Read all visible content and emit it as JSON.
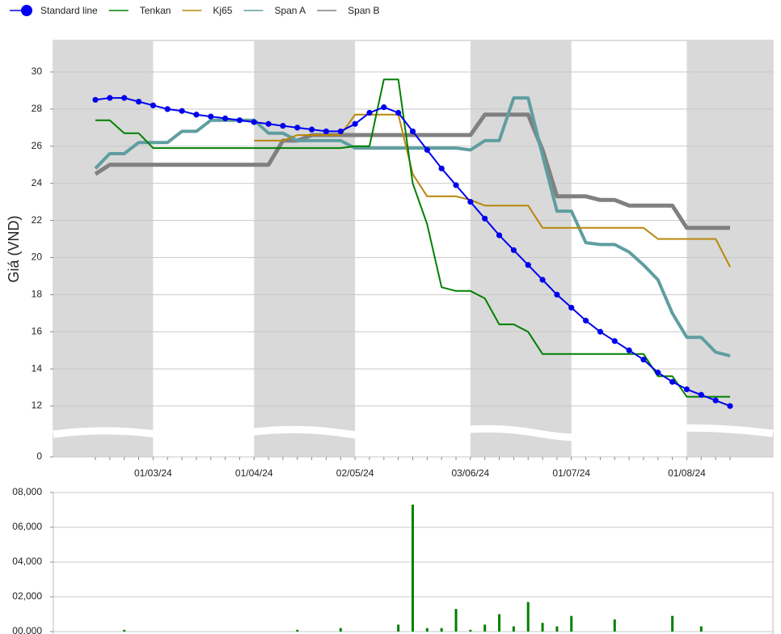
{
  "chart_data": [
    {
      "type": "line",
      "y_label": "Giá (VND)",
      "categories": [
        null,
        null,
        null,
        null,
        "01/03/24",
        null,
        null,
        null,
        null,
        null,
        null,
        "01/04/24",
        null,
        null,
        null,
        null,
        null,
        null,
        "02/05/24",
        null,
        null,
        null,
        null,
        null,
        null,
        null,
        "03/06/24",
        null,
        null,
        null,
        null,
        null,
        null,
        "01/07/24",
        null,
        null,
        null,
        null,
        null,
        null,
        null,
        "01/08/24",
        null,
        null,
        null
      ],
      "ylim": [
        0,
        31.7
      ],
      "axis_break": [
        0,
        11
      ],
      "yticks": [
        0,
        12,
        14,
        16,
        18,
        20,
        22,
        24,
        26,
        28,
        30
      ],
      "grid": true,
      "shade_alternate_months": true,
      "legend": "top-left",
      "series": [
        {
          "name": "Standard line",
          "color": "#0000ee",
          "width": 2,
          "markers": true,
          "values": [
            28.5,
            28.6,
            28.6,
            28.4,
            28.2,
            28.0,
            27.9,
            27.7,
            27.6,
            27.5,
            27.4,
            27.3,
            27.2,
            27.1,
            27.0,
            26.9,
            26.8,
            26.8,
            27.2,
            27.8,
            28.1,
            27.8,
            26.8,
            25.8,
            24.8,
            23.9,
            23.0,
            22.1,
            21.2,
            20.4,
            19.6,
            18.8,
            18.0,
            17.3,
            16.6,
            16.0,
            15.5,
            15.0,
            14.5,
            13.8,
            13.3,
            12.9,
            12.6,
            12.3,
            12.0
          ]
        },
        {
          "name": "Tenkan",
          "color": "#008000",
          "width": 2,
          "markers": false,
          "values": [
            27.4,
            27.4,
            26.7,
            26.7,
            25.9,
            25.9,
            25.9,
            25.9,
            25.9,
            25.9,
            25.9,
            25.9,
            25.9,
            25.9,
            25.9,
            25.9,
            25.9,
            25.9,
            26.0,
            26.0,
            29.6,
            29.6,
            24.0,
            21.8,
            18.4,
            18.2,
            18.2,
            17.8,
            16.4,
            16.4,
            16.0,
            14.8,
            14.8,
            14.8,
            14.8,
            14.8,
            14.8,
            14.8,
            14.8,
            13.6,
            13.6,
            12.5,
            12.5,
            12.5,
            12.5
          ]
        },
        {
          "name": "Kj65",
          "color": "#b8860b",
          "width": 2,
          "markers": false,
          "values": [
            null,
            null,
            null,
            null,
            null,
            null,
            null,
            null,
            null,
            null,
            null,
            26.3,
            26.3,
            26.3,
            26.6,
            26.6,
            26.6,
            26.6,
            27.7,
            27.7,
            27.7,
            27.7,
            24.5,
            23.3,
            23.3,
            23.3,
            23.1,
            22.8,
            22.8,
            22.8,
            22.8,
            21.6,
            21.6,
            21.6,
            21.6,
            21.6,
            21.6,
            21.6,
            21.6,
            21.0,
            21.0,
            21.0,
            21.0,
            21.0,
            19.5
          ]
        },
        {
          "name": "Span A",
          "color": "#5f9ea0",
          "width": 4,
          "markers": false,
          "values": [
            24.8,
            25.6,
            25.6,
            26.2,
            26.2,
            26.2,
            26.8,
            26.8,
            27.4,
            27.4,
            27.4,
            27.4,
            26.7,
            26.7,
            26.3,
            26.3,
            26.3,
            26.3,
            25.9,
            25.9,
            25.9,
            25.9,
            25.9,
            25.9,
            25.9,
            25.9,
            25.8,
            26.3,
            26.3,
            28.6,
            28.6,
            25.5,
            22.5,
            22.5,
            20.8,
            20.7,
            20.7,
            20.3,
            19.6,
            18.8,
            17.0,
            15.7,
            15.7,
            14.9,
            14.7
          ]
        },
        {
          "name": "Span B",
          "color": "#808080",
          "width": 5,
          "markers": false,
          "values": [
            24.5,
            25.0,
            25.0,
            25.0,
            25.0,
            25.0,
            25.0,
            25.0,
            25.0,
            25.0,
            25.0,
            25.0,
            25.0,
            26.3,
            26.3,
            26.6,
            26.6,
            26.6,
            26.6,
            26.6,
            26.6,
            26.6,
            26.6,
            26.6,
            26.6,
            26.6,
            26.6,
            27.7,
            27.7,
            27.7,
            27.7,
            25.8,
            23.3,
            23.3,
            23.3,
            23.1,
            23.1,
            22.8,
            22.8,
            22.8,
            22.8,
            21.6,
            21.6,
            21.6,
            21.6
          ]
        }
      ]
    },
    {
      "type": "bar",
      "color": "#008000",
      "ylim": [
        0,
        8000
      ],
      "yticks": [
        {
          "value": 0,
          "label": "00,000"
        },
        {
          "value": 2000,
          "label": "02,000"
        },
        {
          "value": 4000,
          "label": "04,000"
        },
        {
          "value": 6000,
          "label": "06,000"
        },
        {
          "value": 8000,
          "label": "08,000"
        }
      ],
      "grid": true,
      "values": [
        0,
        0,
        100,
        0,
        0,
        0,
        0,
        0,
        0,
        0,
        0,
        0,
        0,
        0,
        100,
        0,
        0,
        200,
        0,
        0,
        0,
        400,
        7300,
        200,
        200,
        1300,
        100,
        400,
        1000,
        300,
        1700,
        500,
        300,
        900,
        0,
        0,
        700,
        0,
        0,
        0,
        900,
        0,
        300,
        0,
        0
      ]
    }
  ]
}
